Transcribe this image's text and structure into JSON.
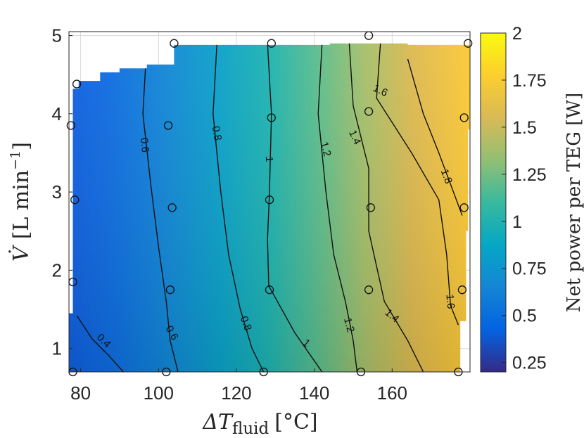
{
  "chart_data": {
    "type": "heatmap",
    "title": "",
    "xlabel": "ΔT",
    "xlabel_sub": "fluid",
    "xlabel_unit": "[°C]",
    "ylabel": "V̇",
    "ylabel_unit": "[L min",
    "ylabel_unit_sup": "−1",
    "ylabel_unit_end": "]",
    "xlim": [
      77,
      180
    ],
    "ylim": [
      0.7,
      5.05
    ],
    "xticks": [
      80,
      100,
      120,
      140,
      160
    ],
    "yticks": [
      1,
      2,
      3,
      4,
      5
    ],
    "grid": true,
    "colorbar": {
      "label": "Net power per TEG [W]",
      "range": [
        0.2,
        2.0
      ],
      "ticks": [
        "0.25",
        "0.5",
        "0.75",
        "1",
        "1.25",
        "1.5",
        "1.75",
        "2"
      ],
      "colormap": [
        "#352a87",
        "#0363e1",
        "#1485d4",
        "#06a7c6",
        "#38b99e",
        "#92bf73",
        "#d9ba56",
        "#fcce2e",
        "#f9fb0e"
      ]
    },
    "contours": [
      {
        "level": "0.4",
        "points": [
          [
            79,
            1.42
          ],
          [
            83,
            1.12
          ],
          [
            87,
            0.92
          ],
          [
            91,
            0.7
          ]
        ]
      },
      {
        "level": "0.6",
        "points": [
          [
            97,
            4.9
          ],
          [
            96,
            4.0
          ],
          [
            98,
            3.1
          ],
          [
            100,
            2.3
          ],
          [
            102,
            1.6
          ],
          [
            103,
            1.1
          ],
          [
            105,
            0.7
          ]
        ]
      },
      {
        "level": "0.8",
        "points": [
          [
            115,
            4.9
          ],
          [
            114,
            4.0
          ],
          [
            116,
            3.0
          ],
          [
            118,
            2.2
          ],
          [
            121,
            1.5
          ],
          [
            124,
            1.0
          ],
          [
            127,
            0.7
          ]
        ]
      },
      {
        "level": "1",
        "points": [
          [
            128,
            4.9
          ],
          [
            129,
            4.0
          ],
          [
            128.5,
            3.0
          ],
          [
            128,
            2.4
          ],
          [
            128.3,
            1.8
          ],
          [
            135,
            1.2
          ],
          [
            142,
            0.7
          ]
        ]
      },
      {
        "level": "1.2",
        "points": [
          [
            142,
            4.9
          ],
          [
            141,
            4.0
          ],
          [
            143,
            3.0
          ],
          [
            145,
            2.2
          ],
          [
            148,
            1.6
          ],
          [
            150,
            1.1
          ],
          [
            151,
            0.7
          ]
        ]
      },
      {
        "level": "1.4",
        "points": [
          [
            149,
            4.9
          ],
          [
            150,
            4.1
          ],
          [
            154,
            3.3
          ],
          [
            154,
            2.5
          ],
          [
            158,
            1.6
          ],
          [
            164,
            1.1
          ],
          [
            168,
            0.7
          ]
        ]
      },
      {
        "level": "1.6",
        "points": [
          [
            157,
            4.9
          ],
          [
            156,
            4.2
          ],
          [
            165,
            3.5
          ],
          [
            172,
            2.9
          ],
          [
            174,
            2.2
          ],
          [
            175,
            1.55
          ],
          [
            177,
            1.3
          ]
        ]
      },
      {
        "level": "1.8",
        "points": [
          [
            164,
            4.7
          ],
          [
            168,
            4.0
          ],
          [
            172,
            3.5
          ],
          [
            175,
            3.1
          ],
          [
            178,
            2.7
          ]
        ]
      }
    ],
    "contour_labels": [
      {
        "text": "0.4",
        "x": 86,
        "y": 1.1,
        "angle": 45
      },
      {
        "text": "0.6",
        "x": 96.5,
        "y": 3.6,
        "angle": 85
      },
      {
        "text": "0.6",
        "x": 103.5,
        "y": 1.2,
        "angle": 60
      },
      {
        "text": "0.8",
        "x": 115,
        "y": 3.75,
        "angle": 80
      },
      {
        "text": "0.8",
        "x": 122.5,
        "y": 1.32,
        "angle": 70
      },
      {
        "text": "1",
        "x": 128.5,
        "y": 3.42,
        "angle": 90
      },
      {
        "text": "1",
        "x": 138,
        "y": 1.07,
        "angle": 40
      },
      {
        "text": "1.2",
        "x": 143,
        "y": 3.55,
        "angle": 75
      },
      {
        "text": "1.2",
        "x": 149,
        "y": 1.3,
        "angle": 75
      },
      {
        "text": "1.4",
        "x": 150.5,
        "y": 3.7,
        "angle": 65
      },
      {
        "text": "1.4",
        "x": 160,
        "y": 1.42,
        "angle": 40
      },
      {
        "text": "1.6",
        "x": 157,
        "y": 4.3,
        "angle": 25
      },
      {
        "text": "1.6",
        "x": 175,
        "y": 1.6,
        "angle": 85
      },
      {
        "text": "1.8",
        "x": 174,
        "y": 3.2,
        "angle": 70
      }
    ],
    "measurement_points": [
      [
        78,
        0.7
      ],
      [
        102,
        0.7
      ],
      [
        127,
        0.7
      ],
      [
        152,
        0.7
      ],
      [
        177,
        0.7
      ],
      [
        78,
        1.85
      ],
      [
        103,
        1.75
      ],
      [
        128.5,
        1.75
      ],
      [
        154,
        1.75
      ],
      [
        178,
        1.75
      ],
      [
        78.5,
        2.9
      ],
      [
        103.5,
        2.8
      ],
      [
        128.5,
        2.9
      ],
      [
        154.5,
        2.8
      ],
      [
        178.5,
        2.8
      ],
      [
        77.5,
        3.85
      ],
      [
        102.5,
        3.85
      ],
      [
        129,
        3.95
      ],
      [
        154,
        4.03
      ],
      [
        178.5,
        3.95
      ],
      [
        79,
        4.38
      ],
      [
        104,
        4.9
      ],
      [
        129,
        4.9
      ],
      [
        154,
        5.0
      ],
      [
        179.5,
        4.9
      ]
    ]
  }
}
